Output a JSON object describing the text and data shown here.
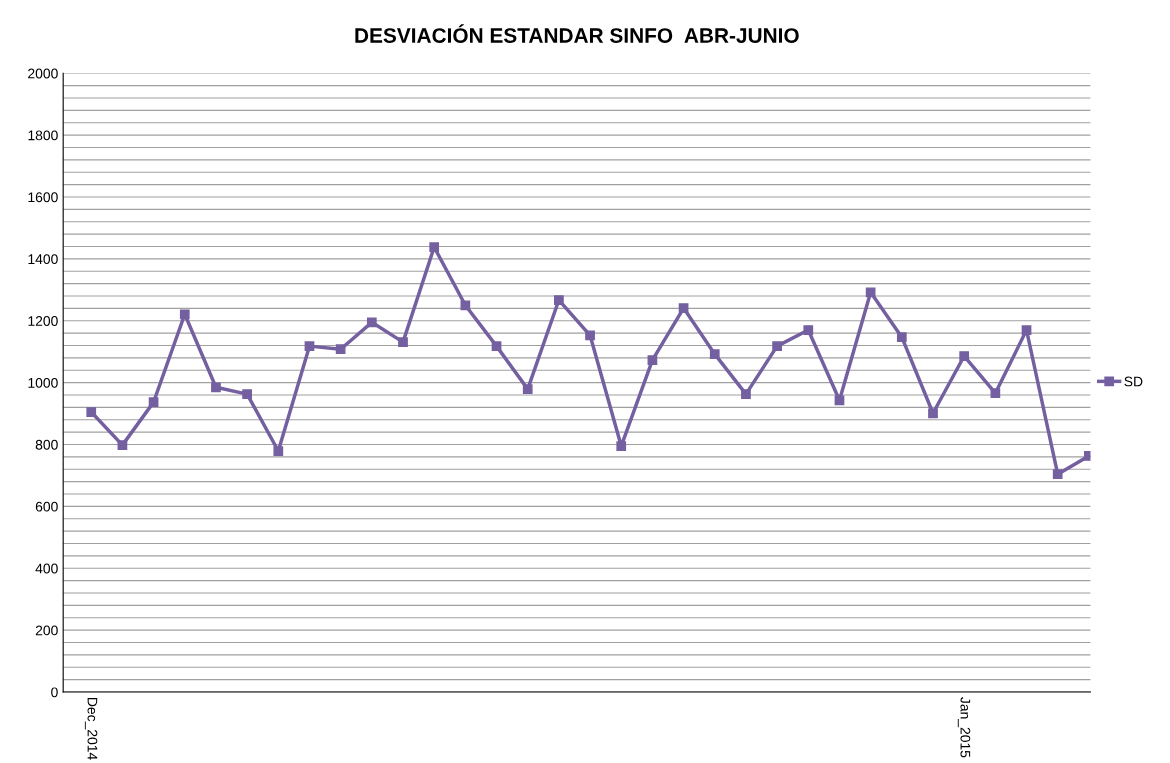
{
  "chart_data": {
    "type": "line",
    "title": "DESVIACIÓN ESTANDAR SINFO  ABR-JUNIO",
    "categories": [
      "Dec_2014",
      null,
      null,
      null,
      null,
      null,
      null,
      null,
      null,
      null,
      null,
      null,
      null,
      null,
      null,
      null,
      null,
      null,
      null,
      null,
      null,
      null,
      null,
      null,
      null,
      null,
      null,
      null,
      "Jan_2015",
      null,
      null,
      null,
      null
    ],
    "series": [
      {
        "name": "SD",
        "color": "#7460a0",
        "values": [
          905,
          798,
          937,
          1221,
          985,
          963,
          779,
          1118,
          1108,
          1195,
          1131,
          1438,
          1250,
          1118,
          979,
          1267,
          1153,
          795,
          1073,
          1241,
          1092,
          963,
          1118,
          1170,
          943,
          1292,
          1147,
          901,
          1086,
          966,
          1170,
          704,
          763
        ]
      }
    ],
    "ylim": [
      0,
      2000
    ],
    "yticks": [
      0,
      {
        "value": 40,
        "label": null
      },
      {
        "value": 80,
        "label": null
      },
      {
        "value": 120,
        "label": null
      },
      {
        "value": 160,
        "label": null
      },
      200,
      {
        "value": 240,
        "label": null
      },
      {
        "value": 280,
        "label": null
      },
      {
        "value": 320,
        "label": null
      },
      {
        "value": 360,
        "label": null
      },
      400,
      {
        "value": 440,
        "label": null
      },
      {
        "value": 480,
        "label": null
      },
      {
        "value": 520,
        "label": null
      },
      {
        "value": 560,
        "label": null
      },
      600,
      {
        "value": 640,
        "label": null
      },
      {
        "value": 680,
        "label": null
      },
      {
        "value": 720,
        "label": null
      },
      {
        "value": 760,
        "label": null
      },
      800,
      {
        "value": 840,
        "label": null
      },
      {
        "value": 880,
        "label": null
      },
      {
        "value": 920,
        "label": null
      },
      {
        "value": 960,
        "label": null
      },
      1000,
      {
        "value": 1040,
        "label": null
      },
      {
        "value": 1080,
        "label": null
      },
      {
        "value": 1120,
        "label": null
      },
      {
        "value": 1160,
        "label": null
      },
      1200,
      {
        "value": 1240,
        "label": null
      },
      {
        "value": 1280,
        "label": null
      },
      {
        "value": 1320,
        "label": null
      },
      {
        "value": 1360,
        "label": null
      },
      1400,
      {
        "value": 1440,
        "label": null
      },
      {
        "value": 1480,
        "label": null
      },
      {
        "value": 1520,
        "label": null
      },
      {
        "value": 1560,
        "label": null
      },
      1600,
      {
        "value": 1640,
        "label": null
      },
      {
        "value": 1680,
        "label": null
      },
      {
        "value": 1720,
        "label": null
      },
      {
        "value": 1760,
        "label": null
      },
      1800,
      {
        "value": 1840,
        "label": null
      },
      {
        "value": 1880,
        "label": null
      },
      {
        "value": 1920,
        "label": null
      },
      {
        "value": 1960,
        "label": null
      },
      2000
    ],
    "grid": "y",
    "legend": "right",
    "marker": "square",
    "line_style": "solid"
  }
}
